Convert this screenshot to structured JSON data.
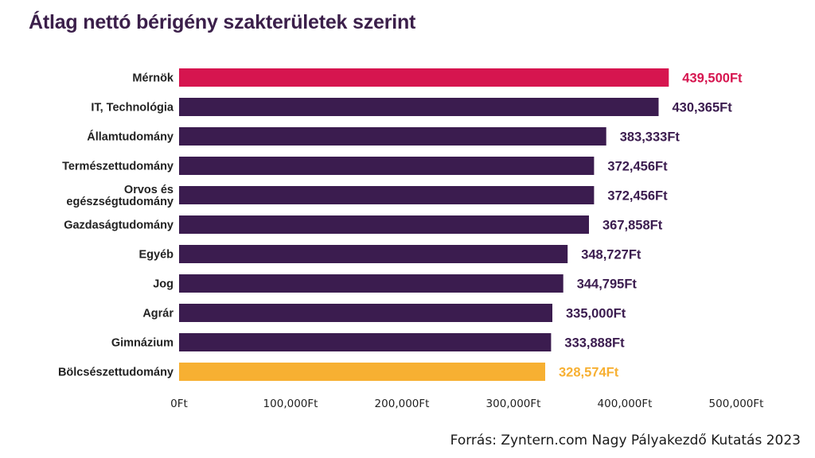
{
  "title": "Átlag nettó bérigény szakterületek szerint",
  "source": "Forrás: Zyntern.com Nagy Pályakezdő Kutatás 2023",
  "colors": {
    "default_bar": "#3b1c4f",
    "highlight_top": "#d6154f",
    "highlight_bottom": "#f7b032",
    "axis_text": "#222222"
  },
  "chart_data": {
    "type": "bar",
    "orientation": "horizontal",
    "title": "Átlag nettó bérigény szakterületek szerint",
    "categories": [
      "Mérnök",
      "IT, Technológia",
      "Államtudomány",
      "Természettudomány",
      "Orvos és egészségtudomány",
      "Gazdaságtudomány",
      "Egyéb",
      "Jog",
      "Agrár",
      "Gimnázium",
      "Bölcsészettudomány"
    ],
    "category_lines": [
      [
        "Mérnök"
      ],
      [
        "IT, Technológia"
      ],
      [
        "Államtudomány"
      ],
      [
        "Természettudomány"
      ],
      [
        "Orvos és",
        "egészségtudomány"
      ],
      [
        "Gazdaságtudomány"
      ],
      [
        "Egyéb"
      ],
      [
        "Jog"
      ],
      [
        "Agrár"
      ],
      [
        "Gimnázium"
      ],
      [
        "Bölcsészettudomány"
      ]
    ],
    "values": [
      439500,
      430365,
      383333,
      372456,
      372456,
      367858,
      348727,
      344795,
      335000,
      333888,
      328574
    ],
    "value_labels": [
      "439,500Ft",
      "430,365Ft",
      "383,333Ft",
      "372,456Ft",
      "372,456Ft",
      "367,858Ft",
      "348,727Ft",
      "344,795Ft",
      "335,000Ft",
      "333,888Ft",
      "328,574Ft"
    ],
    "bar_colors": [
      "#d6154f",
      "#3b1c4f",
      "#3b1c4f",
      "#3b1c4f",
      "#3b1c4f",
      "#3b1c4f",
      "#3b1c4f",
      "#3b1c4f",
      "#3b1c4f",
      "#3b1c4f",
      "#f7b032"
    ],
    "label_colors": [
      "#d6154f",
      "#3b1c4f",
      "#3b1c4f",
      "#3b1c4f",
      "#3b1c4f",
      "#3b1c4f",
      "#3b1c4f",
      "#3b1c4f",
      "#3b1c4f",
      "#3b1c4f",
      "#f7b032"
    ],
    "xlim": [
      0,
      500000
    ],
    "xticks": [
      0,
      100000,
      200000,
      300000,
      400000,
      500000
    ],
    "xtick_labels": [
      "0Ft",
      "100,000Ft",
      "200,000Ft",
      "300,000Ft",
      "400,000Ft",
      "500,000Ft"
    ],
    "xlabel": "",
    "ylabel": "",
    "grid": false,
    "legend": "none"
  }
}
